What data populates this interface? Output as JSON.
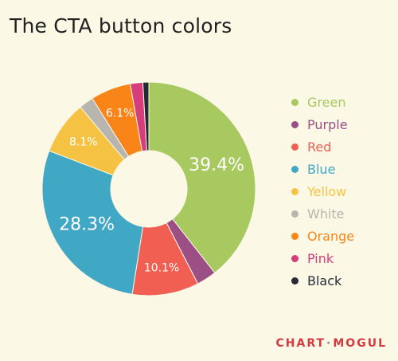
{
  "chart_data": {
    "type": "pie",
    "title": "The CTA button colors",
    "categories": [
      "Green",
      "Purple",
      "Red",
      "Blue",
      "Yellow",
      "White",
      "Orange",
      "Pink",
      "Black"
    ],
    "values": [
      39.4,
      3.0,
      10.1,
      28.3,
      8.1,
      2.2,
      6.1,
      1.9,
      0.9
    ],
    "data_labels": [
      "39.4%",
      "",
      "10.1%",
      "28.3%",
      "8.1%",
      "",
      "6.1%",
      "",
      ""
    ],
    "colors": [
      "#a8c860",
      "#9b4f85",
      "#f05f52",
      "#40a7c4",
      "#f6c244",
      "#b7b5ad",
      "#f98418",
      "#d63d7a",
      "#252a33"
    ],
    "legend_placement": "right",
    "donut": true
  },
  "brand": {
    "name_part1": "CHART",
    "name_part2": "MOGUL"
  }
}
